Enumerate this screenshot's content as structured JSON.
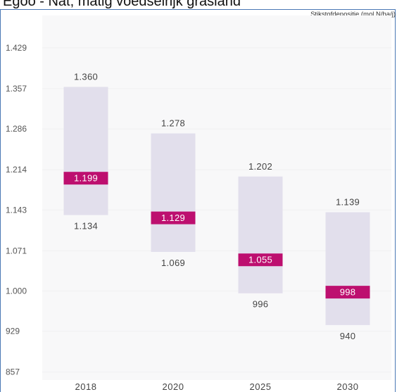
{
  "window_title": "Egoo - Nat, matig voedselrijk grasland",
  "chart_data": {
    "type": "range-bar",
    "title": "",
    "unit_label": "Stikstofdepositie (mol N/ha/j)",
    "y_ticks": [
      "857",
      "929",
      "1.000",
      "1.071",
      "1.143",
      "1.214",
      "1.286",
      "1.357",
      "1.429"
    ],
    "y_tick_values": [
      857,
      929,
      1000,
      1071,
      1143,
      1214,
      1286,
      1357,
      1429
    ],
    "ylim": [
      843,
      1486
    ],
    "categories": [
      "2018",
      "2020",
      "2025",
      "2030"
    ],
    "series": [
      {
        "name": "",
        "role": "max",
        "values": [
          1360,
          1278,
          1202,
          1139
        ],
        "labels": [
          "1.360",
          "1.278",
          "1.202",
          "1.139"
        ]
      },
      {
        "name": "",
        "role": "mean",
        "values": [
          1199,
          1129,
          1055,
          998
        ],
        "labels": [
          "1.199",
          "1.129",
          "1.055",
          "998"
        ]
      },
      {
        "name": "",
        "role": "min",
        "values": [
          1134,
          1069,
          996,
          940
        ],
        "labels": [
          "1.134",
          "1.069",
          "996",
          "940"
        ]
      }
    ],
    "colors": {
      "range": "#e2dfec",
      "mean": "#bd0f6f",
      "plot_bg": "#f8f8f9",
      "grid": "#f0f0f2"
    },
    "grid": true
  }
}
